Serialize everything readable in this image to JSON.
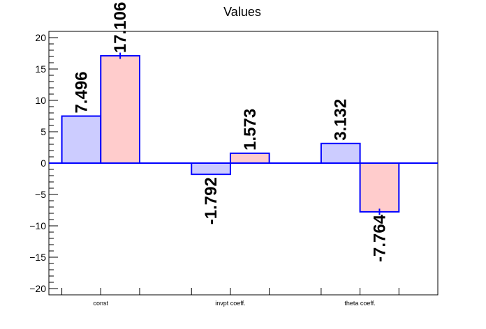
{
  "chart_data": {
    "type": "bar",
    "title": "Values",
    "categories": [
      "const",
      "invpt coeff.",
      "theta coeff."
    ],
    "series": [
      {
        "values": [
          7.496,
          -1.792,
          3.132
        ],
        "errors": [
          0,
          0,
          0
        ],
        "labels": [
          "7.496",
          "-1.792",
          "3.132"
        ],
        "fill": "#ccccff",
        "stroke": "#0000ff"
      },
      {
        "values": [
          17.106,
          1.573,
          -7.764
        ],
        "errors": [
          0.5,
          0,
          0.5
        ],
        "labels": [
          "17.106",
          "1.573",
          "-7.764"
        ],
        "fill": "#ffcccc",
        "stroke": "#0000ff"
      }
    ],
    "ylim": [
      -21,
      21
    ],
    "yticks": [
      -20,
      -15,
      -10,
      -5,
      0,
      5,
      10,
      15,
      20
    ],
    "ytick_labels": [
      "−20",
      "−15",
      "−10",
      "−5",
      "0",
      "5",
      "10",
      "15",
      "20"
    ],
    "zero_line_color": "#0000ff",
    "grid": false
  }
}
